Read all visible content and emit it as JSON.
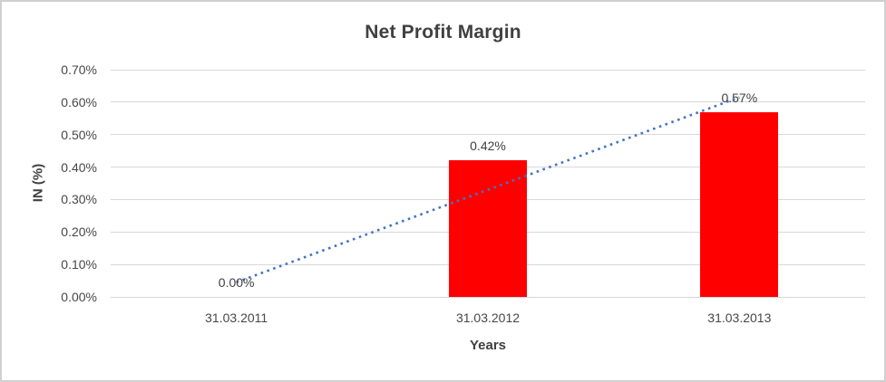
{
  "chart_data": {
    "type": "bar",
    "title": "Net Profit Margin",
    "xlabel": "Years",
    "ylabel": "IN (%)",
    "categories": [
      "31.03.2011",
      "31.03.2012",
      "31.03.2013"
    ],
    "series": [
      {
        "name": "Net Profit Margin",
        "type": "bar",
        "color": "#ff0000",
        "values": [
          0.0,
          0.42,
          0.57
        ],
        "data_labels": [
          "0.00%",
          "0.42%",
          "0.57%"
        ]
      }
    ],
    "trendline": {
      "type": "linear",
      "style": "dotted",
      "color": "#4472c4"
    },
    "ylim": [
      0,
      0.7
    ],
    "ytick_step": 0.1,
    "ytick_labels": [
      "0.00%",
      "0.10%",
      "0.20%",
      "0.30%",
      "0.40%",
      "0.50%",
      "0.60%",
      "0.70%"
    ],
    "grid": true,
    "legend": "none",
    "unit": "%"
  },
  "style": {
    "grid_color": "#d9d9d9",
    "axis_line_color": "#d6d6d6",
    "text_color": "#404040",
    "frame_border_color": "#d0d0d0",
    "background": "#ffffff"
  }
}
